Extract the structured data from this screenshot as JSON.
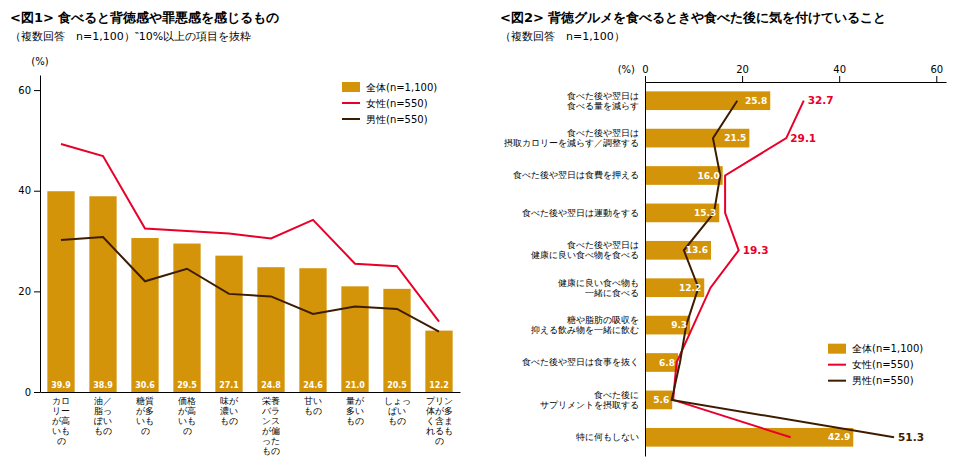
{
  "chart_data": [
    {
      "type": "bar",
      "title": "<図1> 食べると背徳感や罪悪感を感じるもの",
      "subtitle": "（複数回答　n=1,100）‶10%以上の項目を抜粋",
      "ylabel": "(%)",
      "categories": [
        "カロ\nリー\nが高\nいも\nの",
        "油／\n脂っ\nぽい\nもの",
        "糖質\nが多\nいも\nの",
        "価格\nが高\nいも\nの",
        "味が\n濃い\nもの",
        "栄養\nバラ\nンス\nが偏\nった\nもの",
        "甘い\nもの",
        "量が\n多い\nもの",
        "しょっ\nぱい\nもの",
        "プリン\n体が多\nく含ま\nれるも\nの"
      ],
      "series": [
        {
          "name": "全体(n=1,100)",
          "type": "bar",
          "color": "#D4940A",
          "data_labels": true,
          "values": [
            39.9,
            38.9,
            30.6,
            29.5,
            27.1,
            24.8,
            24.6,
            21.0,
            20.5,
            12.2
          ],
          "value_labels": [
            "39.9",
            "38.9",
            "30.6",
            "29.5",
            "27.1",
            "24.8",
            "24.6",
            "21.0",
            "20.5",
            "12.2"
          ]
        },
        {
          "name": "女性(n=550)",
          "type": "line",
          "color": "#E8002A",
          "values": [
            49.3,
            46.9,
            32.5,
            32.0,
            31.5,
            30.5,
            34.2,
            25.5,
            25.0,
            14.0
          ]
        },
        {
          "name": "男性(n=550)",
          "type": "line",
          "color": "#3D1C00",
          "values": [
            30.2,
            30.8,
            22.0,
            24.5,
            19.5,
            19.0,
            15.5,
            17.0,
            16.5,
            12.0
          ]
        }
      ],
      "ylim": [
        0,
        63
      ],
      "yticks": [
        0,
        20,
        40,
        60
      ],
      "grid": false,
      "legend": "upper right"
    },
    {
      "type": "bar",
      "orientation": "horizontal",
      "title": "<図2> 背徳グルメを食べるときや食べた後に気を付けていること",
      "subtitle": "（複数回答　n=1,100）",
      "xlabel": "(%)",
      "categories": [
        "食べた後や翌日は\n食べる量を減らす",
        "食べた後や翌日は\n摂取カロリーを減らす／調整する",
        "食べた後や翌日は食費を押える",
        "食べた後や翌日は運動をする",
        "食べた後や翌日は\n健康に良い食べ物を食べる",
        "健康に良い食べ物も\n一緒に食べる",
        "糖や脂肪の吸収を\n抑える飲み物を一緒に飲む",
        "食べた後や翌日は食事を抜く",
        "食べた後に\nサプリメントを摂取する",
        "特に何もしない"
      ],
      "series": [
        {
          "name": "全体(n=1,100)",
          "type": "bar",
          "color": "#D4940A",
          "data_labels": true,
          "values": [
            25.8,
            21.5,
            16.0,
            15.3,
            13.6,
            12.2,
            9.3,
            6.8,
            5.6,
            42.9
          ],
          "value_labels": [
            "25.8",
            "21.5",
            "16.0",
            "15.3",
            "13.6",
            "12.2",
            "9.3",
            "6.8",
            "5.6",
            "42.9"
          ]
        },
        {
          "name": "女性(n=550)",
          "type": "line",
          "color": "#E8002A",
          "values": [
            32.7,
            29.1,
            16.5,
            16.5,
            19.3,
            13.5,
            10.0,
            6.5,
            5.8,
            30.0
          ],
          "value_labels": [
            "32.7",
            "29.1",
            null,
            null,
            "19.3",
            null,
            null,
            null,
            null,
            null
          ]
        },
        {
          "name": "男性(n=550)",
          "type": "line",
          "color": "#3D1C00",
          "values": [
            19.0,
            14.0,
            15.5,
            14.2,
            8.0,
            11.0,
            8.5,
            7.2,
            5.5,
            51.3
          ],
          "value_labels": [
            null,
            null,
            null,
            null,
            null,
            null,
            null,
            null,
            null,
            "51.3"
          ]
        }
      ],
      "xlim": [
        0,
        62
      ],
      "xticks": [
        0,
        20,
        40,
        60
      ],
      "grid": false,
      "legend": "lower right"
    }
  ]
}
